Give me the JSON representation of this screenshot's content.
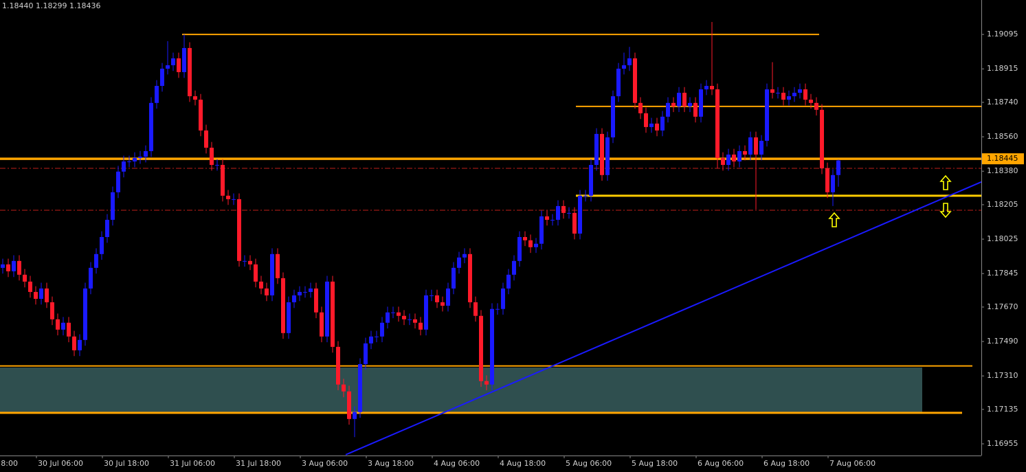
{
  "chart_data": {
    "type": "candlestick",
    "info": "1.18440 1.18299 1.18436",
    "bull_color": "#1a1aff",
    "bear_color": "#ff1a2a",
    "ylim": [
      1.16894,
      1.19275
    ],
    "yticks": [
      1.19095,
      1.18915,
      {
        "value": 1.1874,
        "label": "1.18740"
      },
      {
        "value": 1.1856,
        "label": "1.18560"
      },
      {
        "value": 1.1838,
        "label": "1.18380"
      },
      1.18205,
      1.18025,
      1.17845,
      {
        "value": 1.1767,
        "label": "1.17670"
      },
      {
        "value": 1.1749,
        "label": "1.17490"
      },
      {
        "value": 1.1731,
        "label": "1.17310"
      },
      1.17135,
      1.16955
    ],
    "x_labels": [
      "8:00",
      "30 Jul 06:00",
      "30 Jul 18:00",
      "31 Jul 06:00",
      "31 Jul 18:00",
      "3 Aug 06:00",
      "3 Aug 18:00",
      "4 Aug 06:00",
      "4 Aug 18:00",
      "5 Aug 06:00",
      "5 Aug 18:00",
      "6 Aug 06:00",
      "6 Aug 18:00",
      "7 Aug 06:00"
    ],
    "current_price": 1.18445,
    "levels": [
      {
        "value": 1.19095,
        "color": "#ffa500"
      },
      {
        "value": 1.18719,
        "color": "#ffa500"
      },
      {
        "value": 1.18445,
        "color": "#ffa500"
      },
      {
        "value": 1.18252,
        "color": "#ffcc00"
      },
      {
        "value": 1.17362,
        "color": "#ffa500"
      },
      {
        "value": 1.17117,
        "color": "#ffa500"
      }
    ],
    "dashed_levels": [
      {
        "value": 1.18395,
        "color": "#c0201a"
      },
      {
        "value": 1.18176,
        "color": "#c0201a"
      }
    ],
    "zone": {
      "from": 1.17117,
      "to": 1.17354,
      "color": "#2f4f4f"
    },
    "trendline": {
      "values": [
        1.16898,
        1.18324
      ],
      "color": "#1a1aff"
    },
    "open": [
      1.17875,
      1.17893,
      1.17857,
      1.17911,
      1.17839,
      1.17803,
      1.17749,
      1.17713,
      1.17767,
      1.17695,
      1.17606,
      1.17552,
      1.17588,
      1.17516,
      1.17444,
      1.17498,
      1.17767,
      1.17875,
      1.17947,
      1.18036,
      1.18126,
      1.1827,
      1.18378,
      1.18431,
      1.18431,
      1.18449,
      1.18456,
      1.18485,
      1.18737,
      1.18826,
      1.18916,
      1.18934,
      1.1897,
      1.18898,
      1.19024,
      1.18772,
      1.18754,
      1.18593,
      1.18503,
      1.18413,
      1.18413,
      1.18252,
      1.18234,
      1.18234,
      1.17911,
      1.17911,
      1.17893,
      1.17803,
      1.17767,
      1.17731,
      1.17947,
      1.17821,
      1.17534,
      1.17695,
      1.17731,
      1.17749,
      1.17749,
      1.17767,
      1.17642,
      1.17516,
      1.17803,
      1.17462,
      1.17265,
      1.17229,
      1.17085,
      1.17121,
      1.17372,
      1.1748,
      1.17516,
      1.17516,
      1.17588,
      1.17642,
      1.17642,
      1.17624,
      1.17606,
      1.17606,
      1.17588,
      1.17552,
      1.17731,
      1.17731,
      1.17695,
      1.17677,
      1.17767,
      1.17875,
      1.17929,
      1.17947,
      1.17695,
      1.17624,
      1.17283,
      1.17265,
      1.1766,
      1.1766,
      1.17767,
      1.17839,
      1.17911,
      1.18036,
      1.18019,
      1.17983,
      1.18001,
      1.18144,
      1.18126,
      1.18126,
      1.18198,
      1.18162,
      1.18162,
      1.18054,
      1.18252,
      1.18252,
      1.18413,
      1.18575,
      1.1836,
      1.18557,
      1.18772,
      1.18916,
      1.18934,
      1.1897,
      1.18737,
      1.18683,
      1.18611,
      1.18629,
      1.18593,
      1.18665,
      1.18737,
      1.18719,
      1.1879,
      1.18719,
      1.18737,
      1.18665,
      1.18808,
      1.18826,
      1.18808,
      1.18449,
      1.18413,
      1.18467,
      1.18431,
      1.18485,
      1.18467,
      1.18557,
      1.18467,
      1.18539,
      1.18808,
      1.1879,
      1.1879,
      1.18754,
      1.18772,
      1.1879,
      1.18808,
      1.18754,
      1.18737,
      1.18701,
      1.18395,
      1.1827,
      1.1836
    ],
    "high": [
      1.17923,
      1.17923,
      1.17941,
      1.17941,
      1.17869,
      1.17833,
      1.17779,
      1.17797,
      1.17797,
      1.17725,
      1.17636,
      1.17618,
      1.17618,
      1.17546,
      1.17528,
      1.17797,
      1.17905,
      1.17977,
      1.18066,
      1.18156,
      1.183,
      1.18408,
      1.18461,
      1.18461,
      1.18479,
      1.18486,
      1.18515,
      1.18767,
      1.18856,
      1.18946,
      1.1906,
      1.19,
      1.19,
      1.19095,
      1.19054,
      1.18802,
      1.18784,
      1.18623,
      1.18533,
      1.18443,
      1.18443,
      1.18282,
      1.18264,
      1.18264,
      1.17941,
      1.17941,
      1.17923,
      1.17833,
      1.17797,
      1.17977,
      1.17977,
      1.17851,
      1.17725,
      1.17761,
      1.17779,
      1.17779,
      1.17797,
      1.17797,
      1.17672,
      1.17833,
      1.17833,
      1.17492,
      1.17295,
      1.17259,
      1.17151,
      1.17402,
      1.1751,
      1.17546,
      1.17546,
      1.17618,
      1.17672,
      1.17672,
      1.17672,
      1.17654,
      1.17636,
      1.17636,
      1.17618,
      1.17761,
      1.17761,
      1.17761,
      1.17725,
      1.17797,
      1.17905,
      1.17959,
      1.17977,
      1.17977,
      1.17725,
      1.17654,
      1.17313,
      1.1769,
      1.1769,
      1.17797,
      1.17869,
      1.17941,
      1.18066,
      1.18066,
      1.18049,
      1.18031,
      1.18174,
      1.18174,
      1.18156,
      1.18228,
      1.18228,
      1.18192,
      1.18192,
      1.18282,
      1.18282,
      1.18443,
      1.18605,
      1.18605,
      1.18587,
      1.18802,
      1.18946,
      1.19,
      1.1903,
      1.19,
      1.18767,
      1.18713,
      1.18659,
      1.18659,
      1.18695,
      1.18767,
      1.18767,
      1.1882,
      1.1882,
      1.18767,
      1.18767,
      1.18838,
      1.18856,
      1.1916,
      1.18838,
      1.18479,
      1.18497,
      1.18497,
      1.18515,
      1.18515,
      1.18587,
      1.18587,
      1.18569,
      1.18838,
      1.1895,
      1.1882,
      1.1882,
      1.18802,
      1.1882,
      1.18838,
      1.18838,
      1.18784,
      1.18767,
      1.18731,
      1.18425,
      1.1839,
      1.1844
    ],
    "low": [
      1.17845,
      1.17827,
      1.17827,
      1.17809,
      1.17773,
      1.17719,
      1.17683,
      1.17683,
      1.17665,
      1.17576,
      1.17522,
      1.17522,
      1.17486,
      1.17414,
      1.17414,
      1.17468,
      1.17737,
      1.17845,
      1.17917,
      1.18006,
      1.18096,
      1.1824,
      1.18348,
      1.18401,
      1.18401,
      1.18419,
      1.18426,
      1.18455,
      1.18707,
      1.18796,
      1.18886,
      1.18904,
      1.18868,
      1.18868,
      1.18742,
      1.18724,
      1.18563,
      1.18473,
      1.18383,
      1.18383,
      1.18222,
      1.18204,
      1.18204,
      1.17881,
      1.17881,
      1.17863,
      1.17773,
      1.17737,
      1.17701,
      1.17701,
      1.17791,
      1.17504,
      1.17504,
      1.17665,
      1.17701,
      1.17719,
      1.17719,
      1.17612,
      1.17486,
      1.17486,
      1.17432,
      1.17235,
      1.17199,
      1.17055,
      1.1699,
      1.17091,
      1.17342,
      1.1745,
      1.17486,
      1.17486,
      1.17558,
      1.17612,
      1.17594,
      1.17576,
      1.17576,
      1.17558,
      1.17522,
      1.17522,
      1.17701,
      1.17665,
      1.17647,
      1.17647,
      1.17737,
      1.17845,
      1.17899,
      1.17665,
      1.17594,
      1.17253,
      1.17235,
      1.17235,
      1.1763,
      1.1763,
      1.17737,
      1.17809,
      1.17881,
      1.17989,
      1.17953,
      1.17953,
      1.17971,
      1.18096,
      1.18096,
      1.18096,
      1.18132,
      1.18132,
      1.18024,
      1.18024,
      1.18222,
      1.18222,
      1.18383,
      1.1833,
      1.1833,
      1.18527,
      1.18742,
      1.18886,
      1.18904,
      1.18707,
      1.18653,
      1.18581,
      1.18581,
      1.18563,
      1.18563,
      1.18635,
      1.18689,
      1.18689,
      1.18689,
      1.18689,
      1.18635,
      1.18635,
      1.18778,
      1.18778,
      1.18395,
      1.18383,
      1.18383,
      1.18401,
      1.18401,
      1.18437,
      1.18437,
      1.1818,
      1.18437,
      1.18509,
      1.1876,
      1.1876,
      1.18724,
      1.18724,
      1.18742,
      1.1876,
      1.18724,
      1.18707,
      1.18671,
      1.18365,
      1.1824,
      1.18198,
      1.18299
    ],
    "close": [
      1.17893,
      1.17857,
      1.17911,
      1.17839,
      1.17803,
      1.17749,
      1.17713,
      1.17767,
      1.17695,
      1.17606,
      1.17552,
      1.17588,
      1.17516,
      1.17444,
      1.17498,
      1.17767,
      1.17875,
      1.17947,
      1.18036,
      1.18126,
      1.1827,
      1.18378,
      1.18431,
      1.18431,
      1.18449,
      1.18456,
      1.18485,
      1.18737,
      1.18826,
      1.18916,
      1.18934,
      1.1897,
      1.18898,
      1.19024,
      1.18772,
      1.18754,
      1.18593,
      1.18503,
      1.18413,
      1.18413,
      1.18252,
      1.18234,
      1.18234,
      1.17911,
      1.17911,
      1.17893,
      1.17803,
      1.17767,
      1.17731,
      1.17947,
      1.17821,
      1.17534,
      1.17695,
      1.17731,
      1.17749,
      1.17749,
      1.17767,
      1.17642,
      1.17516,
      1.17803,
      1.17462,
      1.17265,
      1.17229,
      1.17085,
      1.17121,
      1.17372,
      1.1748,
      1.17516,
      1.17516,
      1.17588,
      1.17642,
      1.17642,
      1.17624,
      1.17606,
      1.17606,
      1.17588,
      1.17552,
      1.17731,
      1.17731,
      1.17695,
      1.17677,
      1.17767,
      1.17875,
      1.17929,
      1.17947,
      1.17695,
      1.17624,
      1.17283,
      1.17265,
      1.1766,
      1.1766,
      1.17767,
      1.17839,
      1.17911,
      1.18036,
      1.18019,
      1.17983,
      1.18001,
      1.18144,
      1.18126,
      1.18126,
      1.18198,
      1.18162,
      1.18162,
      1.18054,
      1.18252,
      1.18252,
      1.18413,
      1.18575,
      1.1836,
      1.18557,
      1.18772,
      1.18916,
      1.18934,
      1.1897,
      1.18737,
      1.18683,
      1.18611,
      1.18629,
      1.18593,
      1.18665,
      1.18737,
      1.18719,
      1.1879,
      1.18719,
      1.18737,
      1.18665,
      1.18808,
      1.18826,
      1.18808,
      1.18449,
      1.18413,
      1.18467,
      1.18431,
      1.18485,
      1.18467,
      1.18557,
      1.18467,
      1.18539,
      1.18808,
      1.1879,
      1.1879,
      1.18754,
      1.18772,
      1.1879,
      1.18808,
      1.18754,
      1.18737,
      1.18701,
      1.18395,
      1.1827,
      1.1836,
      1.18436
    ]
  }
}
